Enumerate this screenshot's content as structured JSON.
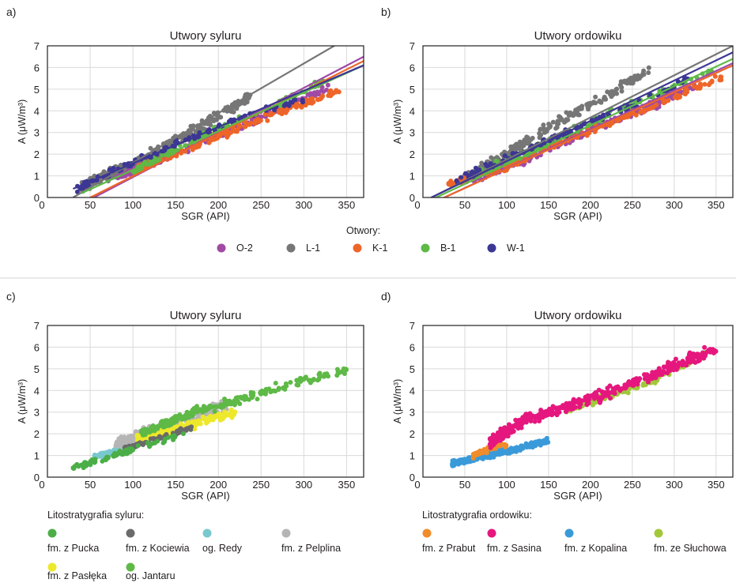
{
  "panel_letters": [
    "a)",
    "b)",
    "c)",
    "d)"
  ],
  "legend_top": {
    "title": "Otwory:",
    "items": [
      {
        "label": "O-2",
        "color": "#a04aa6"
      },
      {
        "label": "L-1",
        "color": "#767676"
      },
      {
        "label": "K-1",
        "color": "#ee6529"
      },
      {
        "label": "B-1",
        "color": "#5eb946"
      },
      {
        "label": "W-1",
        "color": "#3c3694"
      }
    ]
  },
  "legend_c": {
    "title": "Litostratygrafia syluru:",
    "items": [
      {
        "label": "fm. z Pucka",
        "color": "#4bae47"
      },
      {
        "label": "fm. z Kociewia",
        "color": "#6a6a6a"
      },
      {
        "label": "og. Redy",
        "color": "#78c8ce"
      },
      {
        "label": "fm. z Pelplina",
        "color": "#b5b5b5"
      },
      {
        "label": "fm. z Pasłęka",
        "color": "#ede82a"
      },
      {
        "label": "og. Jantaru",
        "color": "#5eb946"
      }
    ]
  },
  "legend_d": {
    "title": "Litostratygrafia ordowiku:",
    "items": [
      {
        "label": "fm. z Prabut",
        "color": "#f08c2a"
      },
      {
        "label": "fm. z Sasina",
        "color": "#e5177e"
      },
      {
        "label": "fm. z Kopalina",
        "color": "#3a9ad9"
      },
      {
        "label": "fm. ze Słuchowa",
        "color": "#a2c83a"
      }
    ]
  },
  "chart_data": [
    {
      "panel": "a)",
      "type": "scatter",
      "title": "Utwory syluru",
      "xlabel": "SGR (API)",
      "ylabel": "A (μW/m³)",
      "xlim": [
        0,
        370
      ],
      "ylim": [
        0,
        7
      ],
      "xticks": [
        50,
        100,
        150,
        200,
        250,
        300,
        350
      ],
      "yticks": [
        0,
        1,
        2,
        3,
        4,
        5,
        6,
        7
      ],
      "x_tick_zero": "0",
      "grid": true,
      "series": [
        {
          "name": "L-1",
          "color": "#767676",
          "band": [
            [
              40,
              0.5
            ],
            [
              100,
              1.55
            ],
            [
              150,
              2.6
            ],
            [
              200,
              3.8
            ],
            [
              240,
              4.7
            ]
          ],
          "w": 0.35,
          "n": 340,
          "line": [
            [
              30,
              0.0
            ],
            [
              340,
              7.1
            ]
          ]
        },
        {
          "name": "O-2",
          "color": "#a04aa6",
          "band": [
            [
              80,
              0.9
            ],
            [
              130,
              1.7
            ],
            [
              200,
              2.9
            ],
            [
              280,
              4.2
            ],
            [
              330,
              5.1
            ]
          ],
          "w": 0.25,
          "n": 170,
          "line": [
            [
              40,
              -0.3
            ],
            [
              370,
              6.5
            ]
          ]
        },
        {
          "name": "K-1",
          "color": "#ee6529",
          "band": [
            [
              105,
              1.3
            ],
            [
              150,
              2.0
            ],
            [
              200,
              2.8
            ],
            [
              270,
              3.9
            ],
            [
              345,
              5.0
            ]
          ],
          "w": 0.25,
          "n": 170,
          "line": [
            [
              40,
              -0.2
            ],
            [
              370,
              6.3
            ]
          ]
        },
        {
          "name": "B-1",
          "color": "#5eb946",
          "band": [
            [
              100,
              1.2
            ],
            [
              150,
              2.2
            ],
            [
              200,
              3.2
            ],
            [
              280,
              4.5
            ],
            [
              330,
              5.5
            ]
          ],
          "w": 0.25,
          "n": 110,
          "line": [
            [
              40,
              0.2
            ],
            [
              370,
              6.1
            ]
          ]
        },
        {
          "name": "W-1",
          "color": "#3c3694",
          "band": [
            [
              35,
              0.4
            ],
            [
              100,
              1.6
            ],
            [
              170,
              2.8
            ],
            [
              250,
              4.0
            ],
            [
              300,
              4.5
            ]
          ],
          "w": 0.25,
          "n": 110,
          "line": [
            [
              30,
              0.4
            ],
            [
              370,
              6.1
            ]
          ]
        }
      ]
    },
    {
      "panel": "b)",
      "type": "scatter",
      "title": "Utwory ordowiku",
      "xlabel": "SGR (API)",
      "ylabel": "A (μW/m³)",
      "xlim": [
        0,
        370
      ],
      "ylim": [
        0,
        7
      ],
      "xticks": [
        50,
        100,
        150,
        200,
        250,
        300,
        350
      ],
      "yticks": [
        0,
        1,
        2,
        3,
        4,
        5,
        6,
        7
      ],
      "x_tick_zero": "0",
      "grid": true,
      "series": [
        {
          "name": "L-1",
          "color": "#767676",
          "band": [
            [
              50,
              0.9
            ],
            [
              100,
              2.0
            ],
            [
              150,
              3.2
            ],
            [
              200,
              4.3
            ],
            [
              270,
              5.9
            ]
          ],
          "w": 0.35,
          "n": 250,
          "line": [
            [
              5,
              -0.1
            ],
            [
              370,
              7.0
            ]
          ]
        },
        {
          "name": "O-2",
          "color": "#a04aa6",
          "band": [
            [
              60,
              0.9
            ],
            [
              120,
              1.7
            ],
            [
              180,
              2.8
            ],
            [
              250,
              3.9
            ],
            [
              330,
              5.2
            ]
          ],
          "w": 0.3,
          "n": 300,
          "line": [
            [
              20,
              -0.1
            ],
            [
              370,
              6.2
            ]
          ]
        },
        {
          "name": "K-1",
          "color": "#ee6529",
          "band": [
            [
              30,
              0.6
            ],
            [
              100,
              1.4
            ],
            [
              170,
              2.6
            ],
            [
              260,
              4.0
            ],
            [
              360,
              5.6
            ]
          ],
          "w": 0.2,
          "n": 160,
          "line": [
            [
              20,
              -0.1
            ],
            [
              370,
              6.1
            ]
          ]
        },
        {
          "name": "B-1",
          "color": "#5eb946",
          "band": [
            [
              60,
              1.1
            ],
            [
              130,
              2.2
            ],
            [
              200,
              3.5
            ],
            [
              280,
              4.8
            ],
            [
              350,
              5.9
            ]
          ],
          "w": 0.25,
          "n": 130,
          "line": [
            [
              10,
              -0.1
            ],
            [
              370,
              6.4
            ]
          ]
        },
        {
          "name": "W-1",
          "color": "#3c3694",
          "band": [
            [
              40,
              0.8
            ],
            [
              100,
              1.8
            ],
            [
              170,
              3.0
            ],
            [
              250,
              4.2
            ],
            [
              320,
              5.6
            ]
          ],
          "w": 0.25,
          "n": 110,
          "line": [
            [
              10,
              0.0
            ],
            [
              370,
              6.7
            ]
          ]
        }
      ]
    },
    {
      "panel": "c)",
      "type": "scatter",
      "title": "Utwory syluru",
      "xlabel": "SGR (API)",
      "ylabel": "A (μW/m³)",
      "xlim": [
        0,
        370
      ],
      "ylim": [
        0,
        7
      ],
      "xticks": [
        50,
        100,
        150,
        200,
        250,
        300,
        350
      ],
      "yticks": [
        0,
        1,
        2,
        3,
        4,
        5,
        6,
        7
      ],
      "x_tick_zero": "0",
      "grid": true,
      "series": [
        {
          "name": "og. Redy",
          "color": "#78c8ce",
          "band": [
            [
              55,
              0.9
            ],
            [
              70,
              1.1
            ],
            [
              90,
              1.3
            ]
          ],
          "w": 0.15,
          "n": 60
        },
        {
          "name": "fm. z Pelplina",
          "color": "#b5b5b5",
          "band": [
            [
              80,
              1.5
            ],
            [
              120,
              2.1
            ],
            [
              170,
              2.8
            ],
            [
              210,
              3.3
            ]
          ],
          "w": 0.35,
          "n": 250
        },
        {
          "name": "fm. z Pasłęka",
          "color": "#ede82a",
          "band": [
            [
              105,
              1.8
            ],
            [
              150,
              2.2
            ],
            [
              190,
              2.7
            ],
            [
              220,
              3.0
            ]
          ],
          "w": 0.3,
          "n": 170
        },
        {
          "name": "fm. z Kociewia",
          "color": "#6a6a6a",
          "band": [
            [
              90,
              1.3
            ],
            [
              130,
              1.8
            ],
            [
              170,
              2.3
            ]
          ],
          "w": 0.15,
          "n": 70
        },
        {
          "name": "fm. z Pucka",
          "color": "#4bae47",
          "band": [
            [
              30,
              0.4
            ],
            [
              70,
              0.9
            ],
            [
              110,
              1.4
            ],
            [
              160,
              2.0
            ]
          ],
          "w": 0.2,
          "n": 90
        },
        {
          "name": "og. Jantaru",
          "color": "#5eb946",
          "band": [
            [
              110,
              2.0
            ],
            [
              170,
              3.0
            ],
            [
              230,
              3.6
            ],
            [
              290,
              4.4
            ],
            [
              350,
              4.9
            ]
          ],
          "w": 0.28,
          "n": 230
        }
      ]
    },
    {
      "panel": "d)",
      "type": "scatter",
      "title": "Utwory ordowiku",
      "xlabel": "SGR (API)",
      "ylabel": "A (μW/m³)",
      "xlim": [
        0,
        370
      ],
      "ylim": [
        0,
        7
      ],
      "xticks": [
        50,
        100,
        150,
        200,
        250,
        300,
        350
      ],
      "yticks": [
        0,
        1,
        2,
        3,
        4,
        5,
        6,
        7
      ],
      "x_tick_zero": "0",
      "grid": true,
      "series": [
        {
          "name": "fm. z Kopalina",
          "color": "#3a9ad9",
          "band": [
            [
              35,
              0.6
            ],
            [
              70,
              0.95
            ],
            [
              110,
              1.3
            ],
            [
              150,
              1.7
            ]
          ],
          "w": 0.18,
          "n": 330
        },
        {
          "name": "fm. z Prabut",
          "color": "#f08c2a",
          "band": [
            [
              60,
              1.0
            ],
            [
              80,
              1.3
            ],
            [
              100,
              1.5
            ]
          ],
          "w": 0.15,
          "n": 40
        },
        {
          "name": "fm. ze Słuchowa",
          "color": "#a2c83a",
          "band": [
            [
              170,
              3.1
            ],
            [
              210,
              3.6
            ],
            [
              250,
              4.1
            ],
            [
              290,
              4.8
            ],
            [
              340,
              5.7
            ]
          ],
          "w": 0.25,
          "n": 120
        },
        {
          "name": "fm. z Sasina",
          "color": "#e5177e",
          "band": [
            [
              80,
              1.6
            ],
            [
              120,
              2.6
            ],
            [
              160,
              3.1
            ],
            [
              220,
              3.9
            ],
            [
              280,
              4.8
            ],
            [
              350,
              5.9
            ]
          ],
          "w": 0.38,
          "n": 430
        }
      ]
    }
  ]
}
